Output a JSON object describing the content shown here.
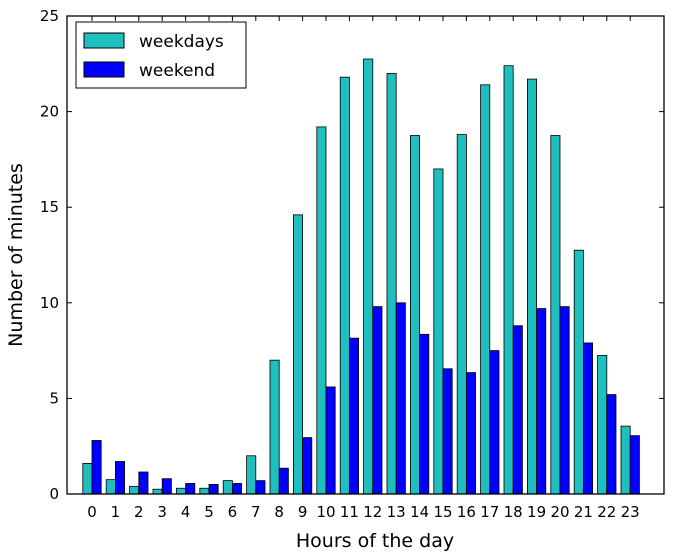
{
  "chart_data": {
    "type": "bar",
    "xlabel": "Hours of the day",
    "ylabel": "Number of minutes",
    "ylim": [
      0,
      25
    ],
    "yticks": [
      0,
      5,
      10,
      15,
      20,
      25
    ],
    "grid": false,
    "legend": "top-left",
    "categories": [
      "0",
      "1",
      "2",
      "3",
      "4",
      "5",
      "6",
      "7",
      "8",
      "9",
      "10",
      "11",
      "12",
      "13",
      "14",
      "15",
      "16",
      "17",
      "18",
      "19",
      "20",
      "21",
      "22",
      "23"
    ],
    "series": [
      {
        "name": "weekdays",
        "color": "#1fbfbf",
        "values": [
          1.6,
          0.75,
          0.4,
          0.25,
          0.3,
          0.3,
          0.7,
          2.0,
          7.0,
          14.6,
          19.2,
          21.8,
          22.75,
          22.0,
          18.75,
          17.0,
          18.8,
          21.4,
          22.4,
          21.7,
          18.75,
          12.75,
          7.25,
          3.55
        ]
      },
      {
        "name": "weekend",
        "color": "#0000ff",
        "values": [
          2.8,
          1.7,
          1.15,
          0.8,
          0.55,
          0.5,
          0.55,
          0.7,
          1.35,
          2.95,
          5.6,
          8.15,
          9.8,
          10.0,
          8.35,
          6.55,
          6.35,
          7.5,
          8.8,
          9.7,
          9.8,
          7.9,
          5.2,
          3.05
        ]
      }
    ]
  }
}
